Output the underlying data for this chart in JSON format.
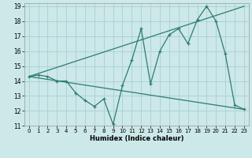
{
  "xlabel": "Humidex (Indice chaleur)",
  "ylabel": "",
  "bg_color": "#cce8e8",
  "grid_color": "#aad0d0",
  "line_color": "#2d7d6e",
  "xlim": [
    -0.5,
    23.5
  ],
  "ylim": [
    11,
    19.2
  ],
  "xticks": [
    0,
    1,
    2,
    3,
    4,
    5,
    6,
    7,
    8,
    9,
    10,
    11,
    12,
    13,
    14,
    15,
    16,
    17,
    18,
    19,
    20,
    21,
    22,
    23
  ],
  "yticks": [
    11,
    12,
    13,
    14,
    15,
    16,
    17,
    18,
    19
  ],
  "line1_x": [
    0,
    1,
    2,
    3,
    4,
    5,
    6,
    7,
    8,
    9,
    10,
    11,
    12,
    13,
    14,
    15,
    16,
    17,
    18,
    19,
    20,
    21,
    22,
    23
  ],
  "line1_y": [
    14.3,
    14.4,
    14.3,
    14.0,
    14.0,
    13.2,
    12.7,
    12.3,
    12.8,
    11.1,
    13.7,
    15.4,
    17.5,
    13.8,
    16.0,
    17.1,
    17.5,
    16.5,
    18.1,
    19.0,
    18.0,
    15.8,
    12.4,
    12.1
  ],
  "line2_x": [
    0,
    23
  ],
  "line2_y": [
    14.3,
    19.0
  ],
  "line3_x": [
    0,
    23
  ],
  "line3_y": [
    14.3,
    12.1
  ]
}
